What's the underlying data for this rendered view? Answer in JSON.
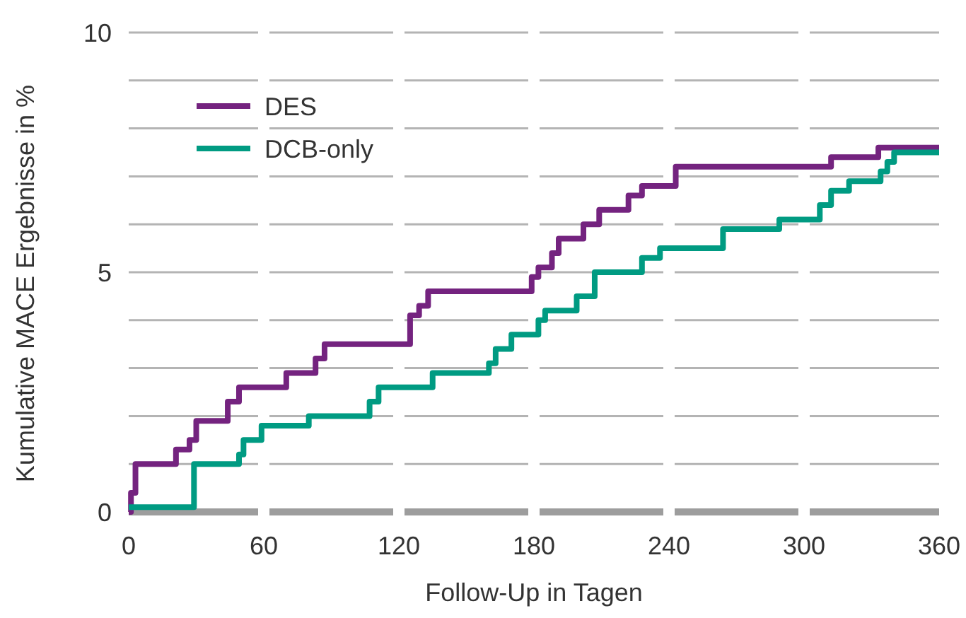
{
  "chart_data": {
    "type": "step",
    "xlabel": "Follow-Up in Tagen",
    "ylabel": "Kumulative MACE Ergebnisse in %",
    "xlim": [
      0,
      360
    ],
    "xticks": [
      0,
      60,
      120,
      180,
      240,
      300,
      360
    ],
    "ylim": [
      0,
      10
    ],
    "yticks": [
      0,
      {
        "value": 1,
        "label": null
      },
      {
        "value": 2,
        "label": null
      },
      {
        "value": 3,
        "label": null
      },
      {
        "value": 4,
        "label": null
      },
      5,
      {
        "value": 6,
        "label": null
      },
      {
        "value": 7,
        "label": null
      },
      {
        "value": 8,
        "label": null
      },
      {
        "value": 9,
        "label": null
      },
      10
    ],
    "grid": "y",
    "legend": "top left",
    "line_style": "solid",
    "marker": "none",
    "series": [
      {
        "name": "DES",
        "color": "#74237f",
        "x": [
          0,
          1,
          3,
          21,
          27,
          30,
          44,
          49,
          70,
          83,
          87,
          125,
          129,
          133,
          179,
          182,
          188,
          191,
          202,
          209,
          222,
          228,
          243,
          312,
          333,
          360
        ],
        "values": [
          0,
          0.4,
          1.0,
          1.3,
          1.5,
          1.9,
          2.3,
          2.6,
          2.9,
          3.2,
          3.5,
          4.1,
          4.3,
          4.6,
          4.9,
          5.1,
          5.4,
          5.7,
          6.0,
          6.3,
          6.6,
          6.8,
          7.2,
          7.4,
          7.6,
          7.6
        ]
      },
      {
        "name": "DCB-only",
        "color": "#009b82",
        "x": [
          0,
          29,
          49,
          51,
          59,
          80,
          107,
          111,
          135,
          160,
          163,
          170,
          182,
          185,
          199,
          207,
          228,
          236,
          264,
          289,
          307,
          312,
          320,
          334,
          337,
          340,
          360
        ],
        "values": [
          0.1,
          1.0,
          1.2,
          1.5,
          1.8,
          2.0,
          2.3,
          2.6,
          2.9,
          3.1,
          3.4,
          3.7,
          4.0,
          4.2,
          4.5,
          5.0,
          5.3,
          5.5,
          5.9,
          6.1,
          6.4,
          6.7,
          6.9,
          7.1,
          7.3,
          7.5,
          7.5
        ]
      }
    ]
  }
}
